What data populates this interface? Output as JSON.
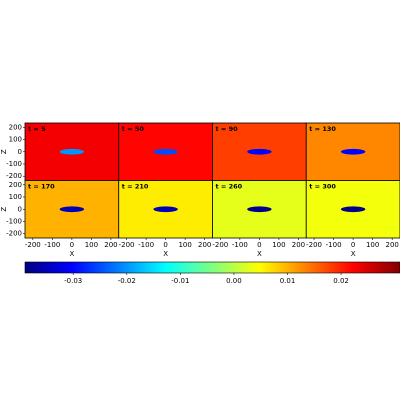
{
  "chart_data": {
    "type": "heatmap",
    "colormap": "jet",
    "x_label": "X",
    "y_label": "Z",
    "xlim": [
      -240,
      240
    ],
    "ylim": [
      -235,
      235
    ],
    "xticks": [
      -200,
      -100,
      0,
      100,
      200
    ],
    "yticks": [
      -200,
      -100,
      0,
      100,
      200
    ],
    "clim": [
      -0.039,
      0.031
    ],
    "cticks": [
      -0.03,
      -0.02,
      -0.01,
      {
        "value": 0,
        "label": "0.00"
      },
      0.01,
      0.02
    ],
    "panels": [
      {
        "title": "t = 5",
        "background": 0.023,
        "center": -0.02
      },
      {
        "title": "t = 50",
        "background": 0.022,
        "center": -0.025
      },
      {
        "title": "t = 90",
        "background": 0.018,
        "center": -0.03
      },
      {
        "title": "t = 130",
        "background": 0.013,
        "center": -0.03
      },
      {
        "title": "t = 170",
        "background": 0.01,
        "center": -0.035
      },
      {
        "title": "t = 210",
        "background": 0.006,
        "center": -0.035
      },
      {
        "title": "t = 260",
        "background": 0.003,
        "center": -0.038
      },
      {
        "title": "t = 300",
        "background": 0.004,
        "center": -0.038
      }
    ]
  }
}
